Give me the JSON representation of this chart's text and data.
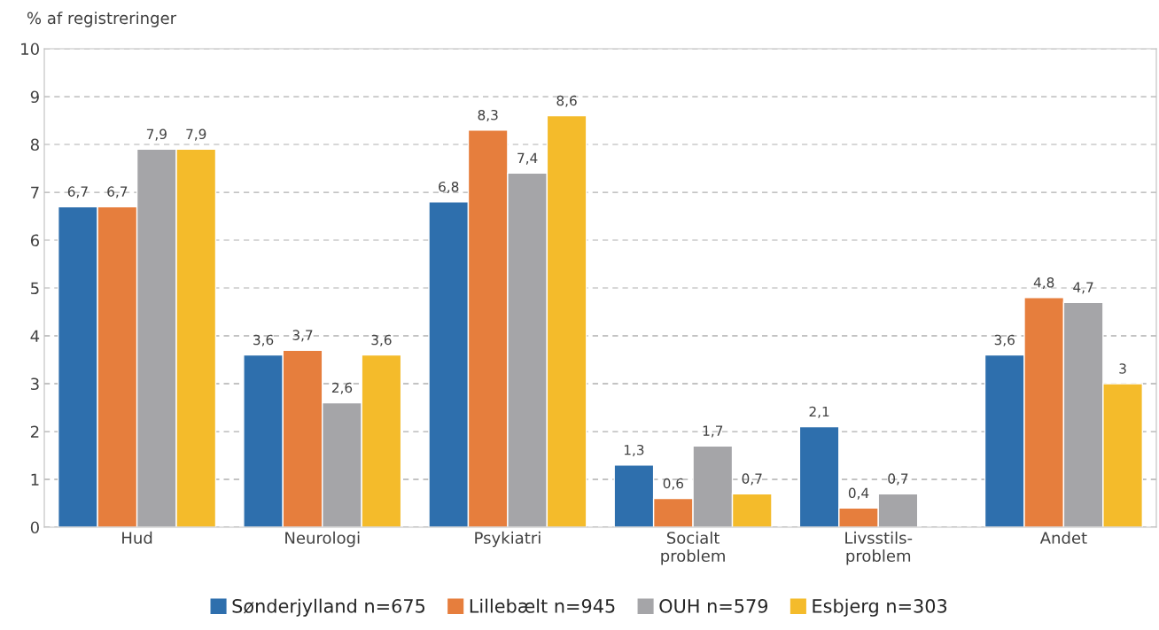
{
  "chart_data": {
    "type": "bar",
    "ylabel": "% af registreringer",
    "categories": [
      "Hud",
      "Neurologi",
      "Psykiatri",
      "Socialt\nproblem",
      "Livsstils-\nproblem",
      "Andet"
    ],
    "series": [
      {
        "name": "Sønderjylland n=675",
        "color": "#2e6fad",
        "values": [
          6.7,
          3.6,
          6.8,
          1.3,
          2.1,
          3.6
        ],
        "value_labels": [
          "6,7",
          "3,6",
          "6,8",
          "1,3",
          "2,1",
          "3,6"
        ]
      },
      {
        "name": "Lillebælt n=945",
        "color": "#e67e3d",
        "values": [
          6.7,
          3.7,
          8.3,
          0.6,
          0.4,
          4.8
        ],
        "value_labels": [
          "6,7",
          "3,7",
          "8,3",
          "0,6",
          "0,4",
          "4,8"
        ]
      },
      {
        "name": "OUH n=579",
        "color": "#a5a5a8",
        "values": [
          7.9,
          2.6,
          7.4,
          1.7,
          0.7,
          4.7
        ],
        "value_labels": [
          "7,9",
          "2,6",
          "7,4",
          "1,7",
          "0,7",
          "4,7"
        ]
      },
      {
        "name": "Esbjerg n=303",
        "color": "#f4bb2b",
        "values": [
          7.9,
          3.6,
          8.6,
          0.7,
          null,
          3.0
        ],
        "value_labels": [
          "7,9",
          "3,6",
          "8,6",
          "0,7",
          null,
          "3"
        ]
      }
    ],
    "ylim": [
      0,
      10
    ],
    "yticks": [
      0,
      1,
      2,
      3,
      4,
      5,
      6,
      7,
      8,
      9,
      10
    ],
    "grid": "y",
    "legend": "bottom"
  }
}
